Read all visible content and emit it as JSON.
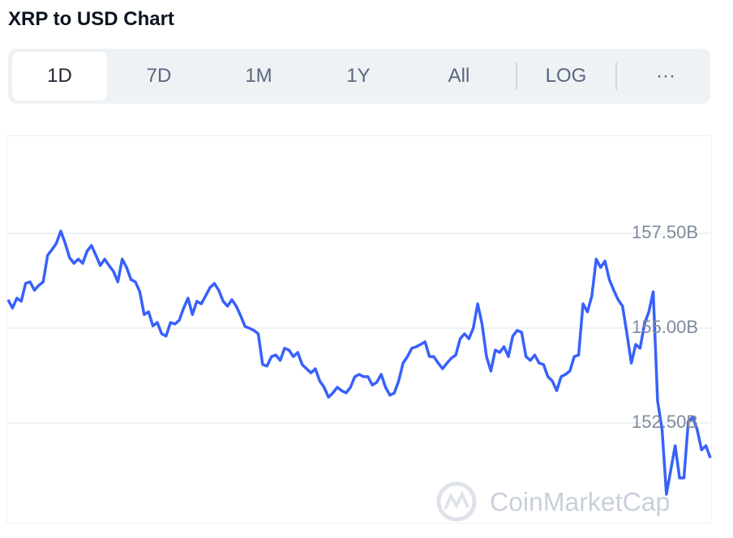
{
  "chart_data": {
    "type": "line",
    "title": "XRP to USD Chart",
    "color": "#3861fb",
    "ylim": [
      150,
      160
    ],
    "yticks": [
      {
        "value": 152.5,
        "label": "152.50B"
      },
      {
        "value": 155,
        "label": "155.00B"
      },
      {
        "value": 157.5,
        "label": "157.50B"
      }
    ],
    "grid": true,
    "values": [
      155.75,
      155.53,
      155.79,
      155.71,
      156.18,
      156.22,
      156.0,
      156.13,
      156.22,
      156.92,
      157.07,
      157.24,
      157.56,
      157.24,
      156.86,
      156.71,
      156.82,
      156.71,
      157.03,
      157.18,
      156.92,
      156.65,
      156.82,
      156.65,
      156.5,
      156.22,
      156.82,
      156.6,
      156.28,
      156.22,
      155.96,
      155.36,
      155.43,
      155.06,
      155.15,
      154.85,
      154.79,
      155.15,
      155.11,
      155.21,
      155.53,
      155.79,
      155.36,
      155.71,
      155.64,
      155.85,
      156.07,
      156.18,
      156.0,
      155.71,
      155.58,
      155.75,
      155.58,
      155.32,
      155.04,
      155.0,
      154.94,
      154.85,
      154.04,
      154.0,
      154.25,
      154.29,
      154.15,
      154.47,
      154.42,
      154.25,
      154.36,
      154.04,
      153.93,
      153.82,
      153.93,
      153.61,
      153.44,
      153.18,
      153.29,
      153.44,
      153.35,
      153.29,
      153.44,
      153.72,
      153.78,
      153.72,
      153.72,
      153.5,
      153.57,
      153.78,
      153.44,
      153.23,
      153.29,
      153.61,
      154.08,
      154.25,
      154.47,
      154.51,
      154.57,
      154.64,
      154.25,
      154.25,
      154.08,
      153.93,
      154.08,
      154.21,
      154.29,
      154.72,
      154.85,
      154.72,
      155.0,
      155.64,
      155.11,
      154.25,
      153.87,
      154.42,
      154.36,
      154.51,
      154.25,
      154.79,
      154.94,
      154.89,
      154.25,
      154.15,
      154.29,
      154.08,
      154.04,
      153.72,
      153.61,
      153.35,
      153.72,
      153.78,
      153.87,
      154.25,
      154.29,
      155.64,
      155.43,
      155.85,
      156.82,
      156.6,
      156.77,
      156.28,
      156.0,
      155.75,
      155.58,
      154.85,
      154.08,
      154.57,
      154.47,
      155.11,
      155.43,
      155.96,
      153.08,
      152.33,
      150.62,
      151.26,
      151.9,
      151.05,
      151.05,
      152.54,
      152.65,
      152.33,
      151.79,
      151.9,
      151.58
    ]
  },
  "toolbar": {
    "tabs": [
      "1D",
      "7D",
      "1M",
      "1Y",
      "All",
      "LOG",
      "···"
    ]
  },
  "watermark": "CoinMarketCap"
}
